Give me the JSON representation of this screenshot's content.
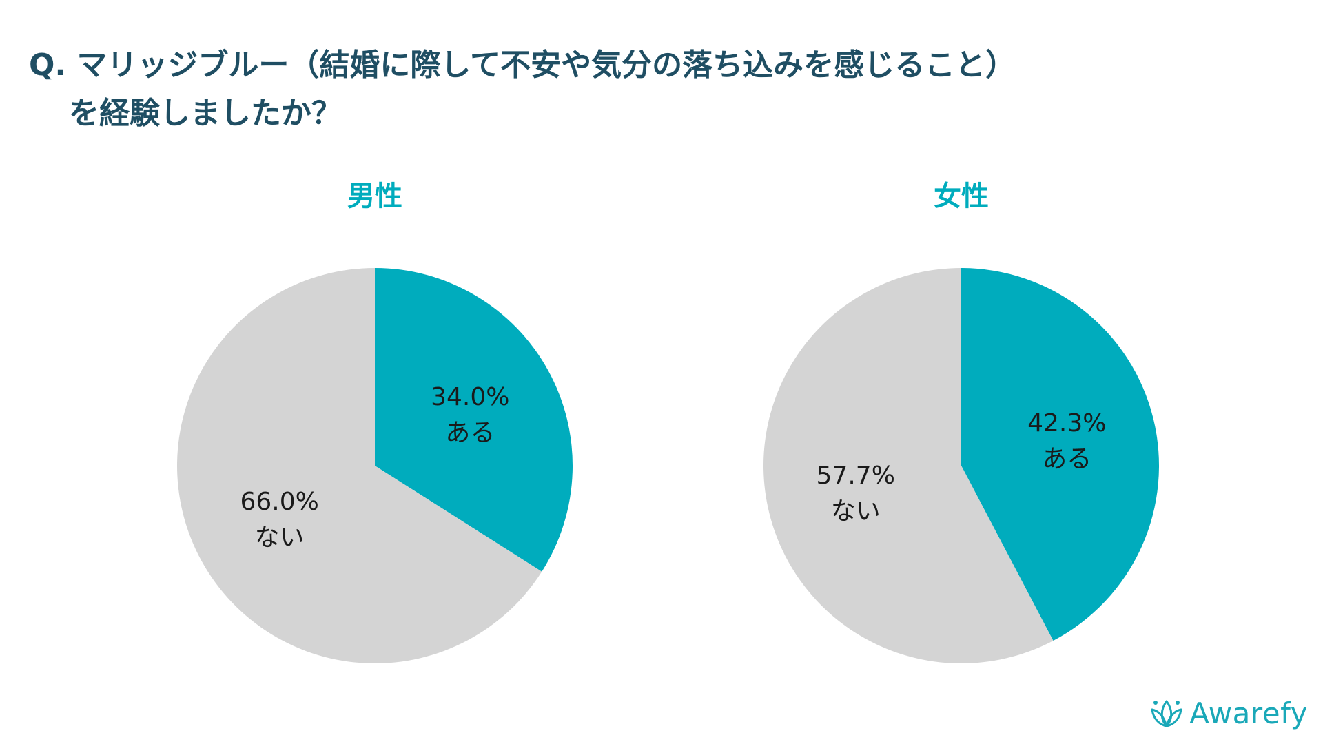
{
  "question": {
    "line1": "Q. マリッジブルー（結婚に際して不安や気分の落ち込みを感じること）",
    "line2": "を経験しましたか？"
  },
  "colors": {
    "accent": "#00acbd",
    "gray": "#d4d4d4",
    "question_text": "#1f4e63",
    "brand": "#1aa8b8"
  },
  "chart_data": [
    {
      "type": "pie",
      "title": "男性",
      "slices": [
        {
          "label": "ある",
          "value": 34.0,
          "display": "34.0%",
          "color": "#00acbd"
        },
        {
          "label": "ない",
          "value": 66.0,
          "display": "66.0%",
          "color": "#d4d4d4"
        }
      ]
    },
    {
      "type": "pie",
      "title": "女性",
      "slices": [
        {
          "label": "ある",
          "value": 42.3,
          "display": "42.3%",
          "color": "#00acbd"
        },
        {
          "label": "ない",
          "value": 57.7,
          "display": "57.7%",
          "color": "#d4d4d4"
        }
      ]
    }
  ],
  "brand": {
    "name": "Awarefy",
    "icon": "lotus-icon"
  }
}
